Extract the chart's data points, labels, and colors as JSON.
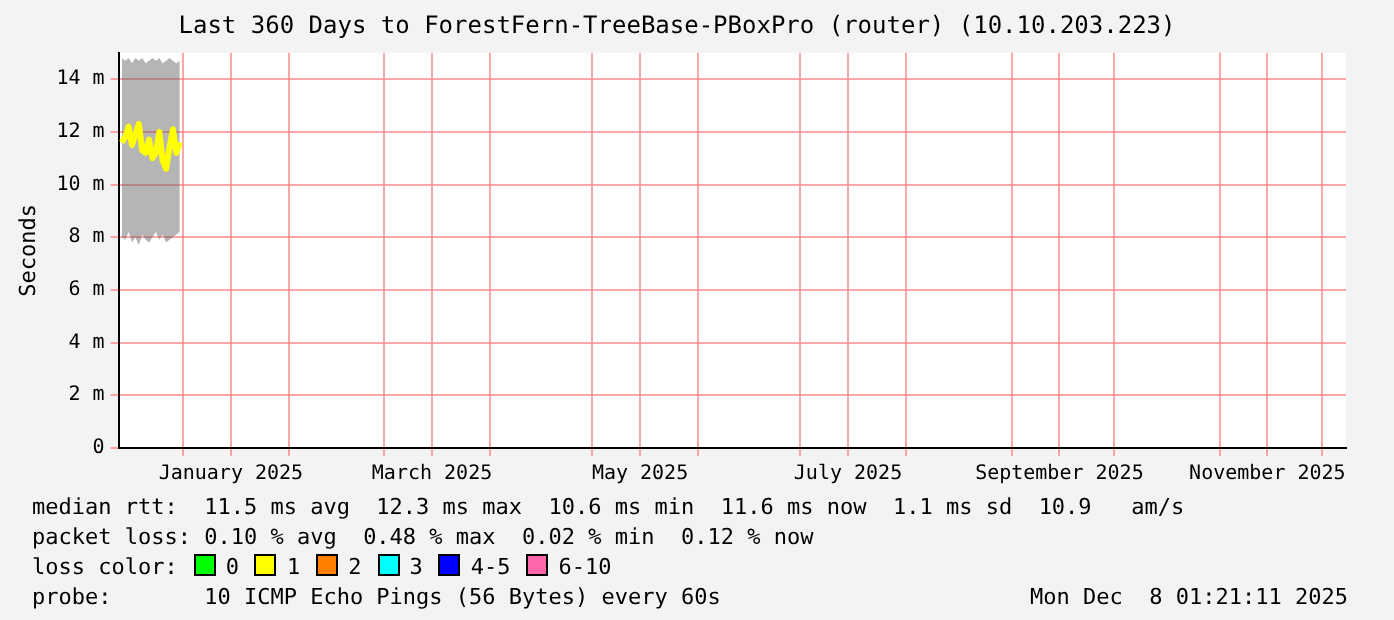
{
  "chart_data": {
    "type": "line",
    "title": "Last 360 Days to ForestFern-TreeBase-PBoxPro (router) (10.10.203.223)",
    "ylabel": "Seconds",
    "x": [
      "2024-12-14",
      "2024-12-15",
      "2024-12-16",
      "2024-12-17",
      "2024-12-18",
      "2024-12-19",
      "2024-12-20",
      "2024-12-21",
      "2024-12-22",
      "2024-12-23",
      "2024-12-24",
      "2024-12-25",
      "2024-12-26",
      "2024-12-27",
      "2024-12-28",
      "2024-12-29",
      "2024-12-30",
      "2024-12-31"
    ],
    "series": [
      {
        "name": "median rtt:",
        "color": "#ffff00",
        "values": [
          11.6,
          11.8,
          12.2,
          11.5,
          11.9,
          12.3,
          11.3,
          11.2,
          11.7,
          11,
          11.2,
          12,
          10.9,
          10.6,
          11.4,
          12.1,
          11.2,
          11.6
        ],
        "lower": [
          8,
          7.9,
          8.2,
          7.8,
          8,
          7.7,
          8.1,
          7.9,
          7.8,
          8,
          8.2,
          7.9,
          8.1,
          7.8,
          7.9,
          8,
          8.1,
          8.2
        ],
        "upper": [
          14.8,
          14.7,
          14.8,
          14.6,
          14.8,
          14.7,
          14.8,
          14.6,
          14.7,
          14.8,
          14.7,
          14.8,
          14.6,
          14.7,
          14.8,
          14.7,
          14.6,
          14.7
        ]
      }
    ],
    "xlim": [
      "2024-12-13T01:21",
      "2025-12-08T01:21"
    ],
    "xticks": [
      {
        "value": "2025-01-01",
        "label": null
      },
      {
        "value": "2025-01-15",
        "label": "January 2025"
      },
      {
        "value": "2025-02-01",
        "label": null
      },
      {
        "value": "2025-03-01",
        "label": null
      },
      {
        "value": "2025-03-15",
        "label": "March 2025"
      },
      {
        "value": "2025-04-01",
        "label": null
      },
      {
        "value": "2025-05-01",
        "label": null
      },
      {
        "value": "2025-05-15",
        "label": "May 2025"
      },
      {
        "value": "2025-06-01",
        "label": null
      },
      {
        "value": "2025-07-01",
        "label": null
      },
      {
        "value": "2025-07-15",
        "label": "July 2025"
      },
      {
        "value": "2025-08-01",
        "label": null
      },
      {
        "value": "2025-09-01",
        "label": null
      },
      {
        "value": "2025-09-15",
        "label": "September 2025"
      },
      {
        "value": "2025-10-01",
        "label": null
      },
      {
        "value": "2025-11-01",
        "label": null
      },
      {
        "value": "2025-11-15",
        "label": "November 2025"
      },
      {
        "value": "2025-12-01",
        "label": null
      }
    ],
    "ylim": [
      0,
      15
    ],
    "yticks": [
      0,
      {
        "value": 2,
        "label": "2 m"
      },
      {
        "value": 4,
        "label": "4 m"
      },
      {
        "value": 6,
        "label": "6 m"
      },
      {
        "value": 8,
        "label": "8 m"
      },
      {
        "value": 10,
        "label": "10 m"
      },
      {
        "value": 12,
        "label": "12 m"
      },
      {
        "value": 14,
        "label": "14 m"
      }
    ],
    "grid": true,
    "legend": false,
    "marker": "none",
    "line_style": "solid",
    "annotations": [
      "11.5 ms avg  12.3 ms max  10.6 ms min  11.6 ms now  1.1 ms sd  10.9   am/s",
      "packet loss: 0.10 % avg  0.48 % max  0.02 % min  0.12 % now",
      "loss color:",
      "0",
      "1",
      "2",
      "3",
      "4-5",
      "6-10",
      "probe:       10 ICMP Echo Pings (56 Bytes) every 60s",
      "Mon Dec  8 01:21:11 2025"
    ]
  }
}
